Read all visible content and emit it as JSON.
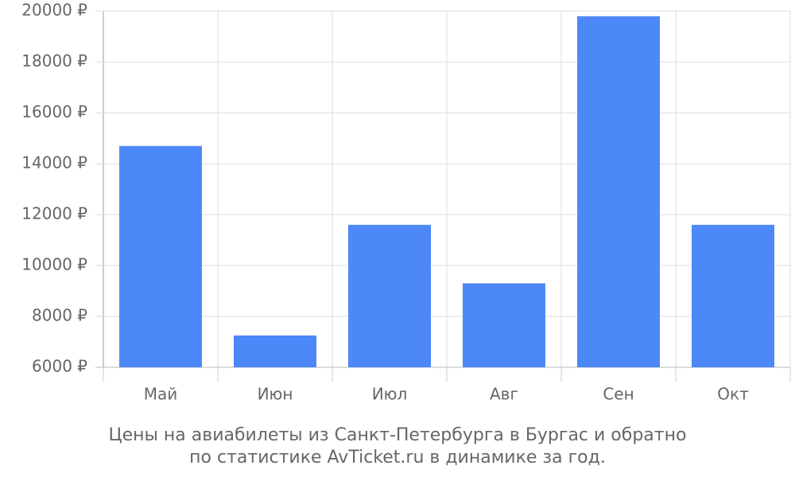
{
  "chart_data": {
    "type": "bar",
    "caption": [
      "Цены на авиабилеты из Санкт-Петербурга в Бургас и обратно",
      "по статистике AvTicket.ru в динамике за год."
    ],
    "categories": [
      "Май",
      "Июн",
      "Июл",
      "Авг",
      "Сен",
      "Окт"
    ],
    "values": [
      14700,
      7250,
      11600,
      9300,
      19800,
      11600
    ],
    "color": "#4d88f9",
    "ylim": [
      6000,
      20000
    ],
    "yticks": [
      {
        "value": 6000,
        "label": "6000 ₽"
      },
      {
        "value": 8000,
        "label": "8000 ₽"
      },
      {
        "value": 10000,
        "label": "10000 ₽"
      },
      {
        "value": 12000,
        "label": "12000 ₽"
      },
      {
        "value": 14000,
        "label": "14000 ₽"
      },
      {
        "value": 16000,
        "label": "16000 ₽"
      },
      {
        "value": 18000,
        "label": "18000 ₽"
      },
      {
        "value": 20000,
        "label": "20000 ₽"
      }
    ],
    "grid": true
  }
}
